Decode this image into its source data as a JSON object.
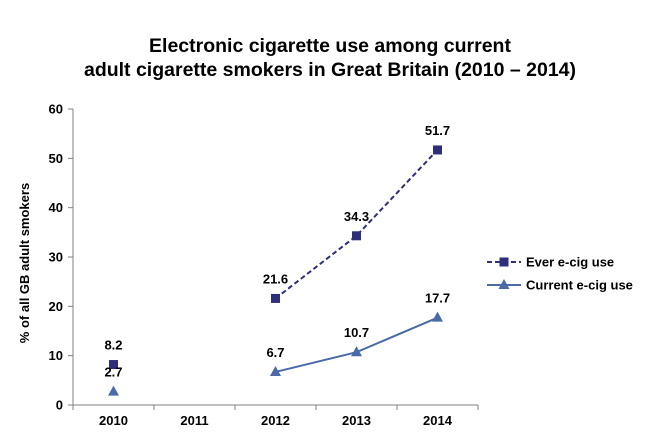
{
  "chart_data": {
    "type": "line",
    "title_line1": "Electronic cigarette use among current",
    "title_line2": "adult cigarette smokers in Great Britain (2010 – 2014)",
    "xlabel": "",
    "ylabel": "% of all GB adult smokers",
    "categories": [
      "2010",
      "2011",
      "2012",
      "2013",
      "2014"
    ],
    "ylim": [
      0,
      60
    ],
    "yticks": [
      0,
      10,
      20,
      30,
      40,
      50,
      60
    ],
    "series": [
      {
        "name": "Ever e-cig use",
        "values": [
          8.2,
          null,
          21.6,
          34.3,
          51.7
        ],
        "labels": [
          "8.2",
          "",
          "21.6",
          "34.3",
          "51.7"
        ],
        "color": "#2e2f7a",
        "line_style": "dashed",
        "marker": "square"
      },
      {
        "name": "Current e-cig use",
        "values": [
          2.7,
          null,
          6.7,
          10.7,
          17.7
        ],
        "labels": [
          "2.7",
          "",
          "6.7",
          "10.7",
          "17.7"
        ],
        "color": "#4a6aa8",
        "line_style": "solid",
        "marker": "triangle"
      }
    ],
    "legend_position": "right",
    "grid": false
  }
}
